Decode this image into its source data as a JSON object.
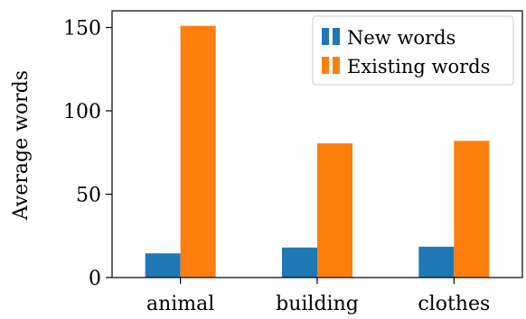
{
  "chart_data": {
    "type": "bar",
    "categories": [
      "animal",
      "building",
      "clothes"
    ],
    "series": [
      {
        "name": "New words",
        "values": [
          14.5,
          18,
          18.5
        ],
        "color": "#1f77b4"
      },
      {
        "name": "Existing words",
        "values": [
          151,
          80.5,
          82
        ],
        "color": "#ff7f0e"
      }
    ],
    "xlabel": "",
    "ylabel": "Average words",
    "ylim": [
      0,
      160
    ],
    "yticks": [
      0,
      50,
      100,
      150
    ],
    "grid": false,
    "legend_position": "top-right"
  }
}
